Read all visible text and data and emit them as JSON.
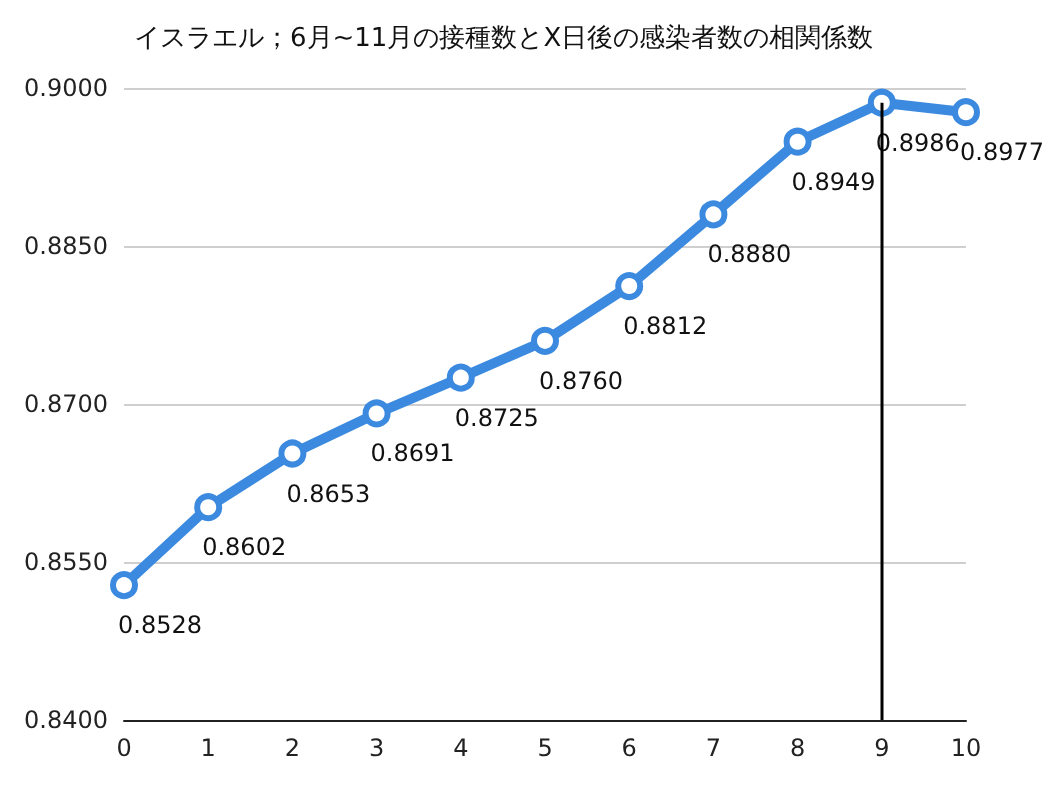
{
  "chart_data": {
    "type": "line",
    "title": "イスラエル；6月~11月の接種数とX日後の感染者数の相関係数",
    "x": [
      0,
      1,
      2,
      3,
      4,
      5,
      6,
      7,
      8,
      9,
      10
    ],
    "series": [
      {
        "color": "#3b8ae0",
        "values": [
          0.8528,
          0.8602,
          0.8653,
          0.8691,
          0.8725,
          0.876,
          0.8812,
          0.888,
          0.8949,
          0.8986,
          0.8977
        ],
        "value_labels": [
          "0.8528",
          "0.8602",
          "0.8653",
          "0.8691",
          "0.8725",
          "0.8760",
          "0.8812",
          "0.8880",
          "0.8949",
          "0.8986",
          "0.8977"
        ]
      }
    ],
    "xlim": [
      0,
      10
    ],
    "xticks": [
      0,
      1,
      2,
      3,
      4,
      5,
      6,
      7,
      8,
      9,
      10
    ],
    "ylim": [
      0.84,
      0.9
    ],
    "yticks": [
      {
        "value": 0.84,
        "label": "0.8400"
      },
      {
        "value": 0.855,
        "label": "0.8550"
      },
      {
        "value": 0.87,
        "label": "0.8700"
      },
      {
        "value": 0.885,
        "label": "0.8850"
      },
      {
        "value": 0.9,
        "label": "0.9000"
      }
    ],
    "ref_lines": [
      {
        "axis": "x",
        "value": 9,
        "color": "#000000"
      }
    ],
    "grid": "y",
    "marker": "circle",
    "line_style": "solid"
  }
}
